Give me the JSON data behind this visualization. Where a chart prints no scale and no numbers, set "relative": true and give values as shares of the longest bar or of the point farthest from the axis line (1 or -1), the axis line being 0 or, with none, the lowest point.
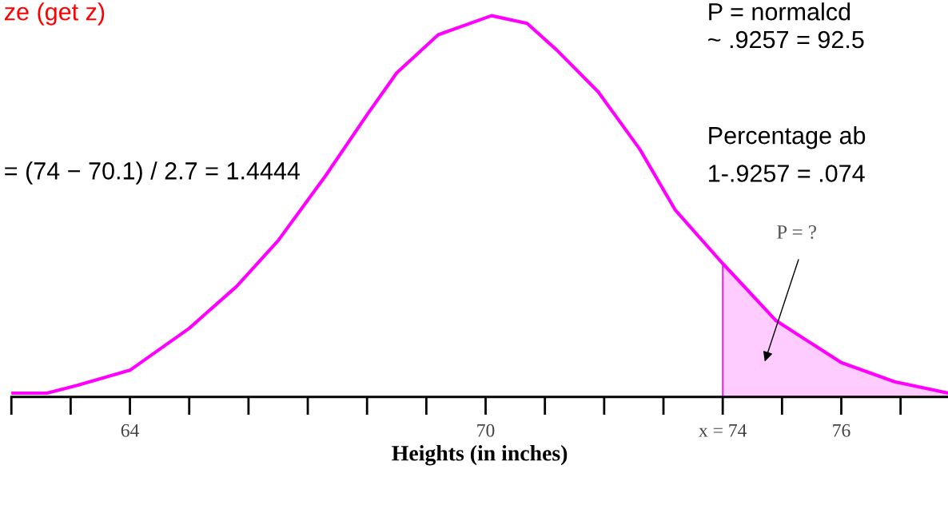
{
  "chart_data": {
    "type": "line",
    "relative": true,
    "xlabel": "Heights (in inches)",
    "xlim": [
      62,
      77.8
    ],
    "xticks": [
      64,
      70,
      {
        "value": 74,
        "label": "x = 74"
      },
      76
    ],
    "series": [
      {
        "color": "#ff00ff",
        "x": [
          62.0,
          62.6,
          63.1,
          64.0,
          65.0,
          65.8,
          66.5,
          67.3,
          68.0,
          68.5,
          69.2,
          70.1,
          70.7,
          71.2,
          71.9,
          72.6,
          73.2,
          74.0,
          74.9,
          76.0,
          76.9,
          77.8
        ],
        "values": [
          0.01,
          0.01,
          0.03,
          0.07,
          0.18,
          0.29,
          0.41,
          0.58,
          0.74,
          0.85,
          0.95,
          1.0,
          0.98,
          0.91,
          0.8,
          0.65,
          0.49,
          0.35,
          0.2,
          0.09,
          0.04,
          0.01
        ]
      },
      {
        "type": "area",
        "color": "#ffccff",
        "x": [
          74.0,
          74.9,
          76.0,
          76.9,
          77.8
        ],
        "values": [
          0.35,
          0.2,
          0.09,
          0.04,
          0.01
        ]
      }
    ],
    "annotations": [
      "ze (get z)",
      "= (74 − 70.1) / 2.7 = 1.4444",
      "P = normalcd",
      "~ .9257 = 92.5",
      "Percentage ab",
      "1-.9257 = .074",
      "P = ?"
    ],
    "ref_lines": [
      {
        "axis": "x",
        "value": 74,
        "color": "#ff00ff"
      }
    ]
  }
}
